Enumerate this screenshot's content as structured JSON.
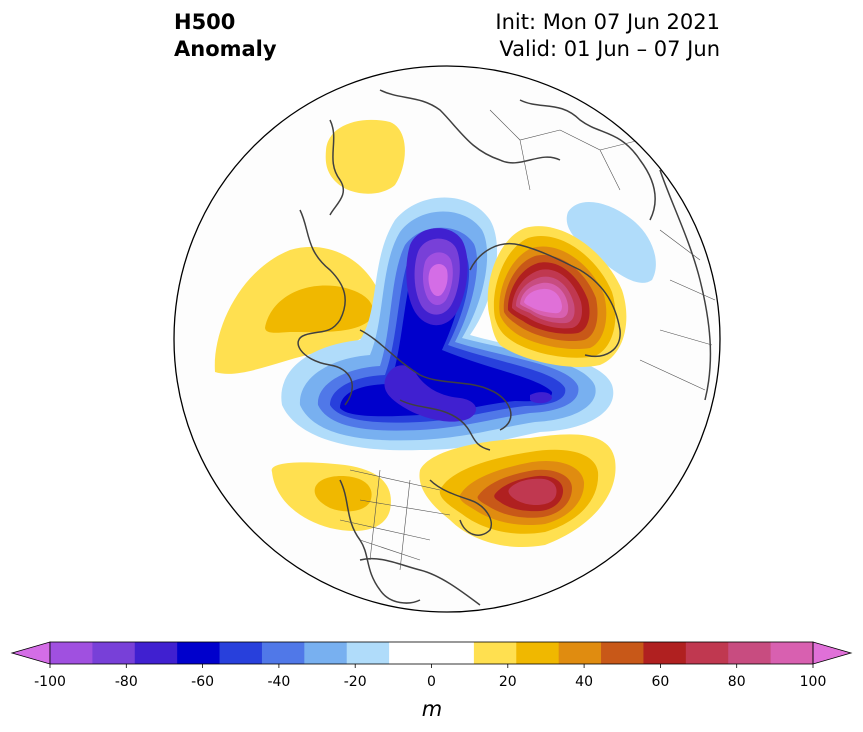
{
  "title": {
    "field": "H500",
    "kind": "Anomaly",
    "init": "Init: Mon 07 Jun 2021",
    "valid": "Valid: 01 Jun – 07 Jun"
  },
  "colorbar": {
    "unit": "m",
    "ticks": [
      "-100",
      "-80",
      "-60",
      "-40",
      "-20",
      "0",
      "20",
      "40",
      "60",
      "80",
      "100"
    ],
    "colors": [
      "#d46de6",
      "#a050e0",
      "#7840d8",
      "#4020d0",
      "#0000cc",
      "#2840dc",
      "#5078e8",
      "#78b0f0",
      "#b0dcfa",
      "#ffffff",
      "#ffffff",
      "#ffe050",
      "#f0b800",
      "#e08c10",
      "#c85818",
      "#b02020",
      "#c03850",
      "#c84c80",
      "#d860b0",
      "#e070d8"
    ]
  },
  "anomalies": [
    {
      "id": "low-arctic",
      "sign": "negative",
      "peak": -100
    },
    {
      "id": "low-canada",
      "sign": "negative",
      "peak": -80
    },
    {
      "id": "high-eurasia",
      "sign": "positive",
      "peak": 100
    },
    {
      "id": "high-atlantic",
      "sign": "positive",
      "peak": 60
    },
    {
      "id": "high-alaska-sea",
      "sign": "positive",
      "peak": 20
    },
    {
      "id": "high-asia",
      "sign": "positive",
      "peak": 30
    },
    {
      "id": "high-pacific",
      "sign": "positive",
      "peak": 20
    },
    {
      "id": "low-siberia",
      "sign": "negative",
      "peak": -20
    }
  ]
}
